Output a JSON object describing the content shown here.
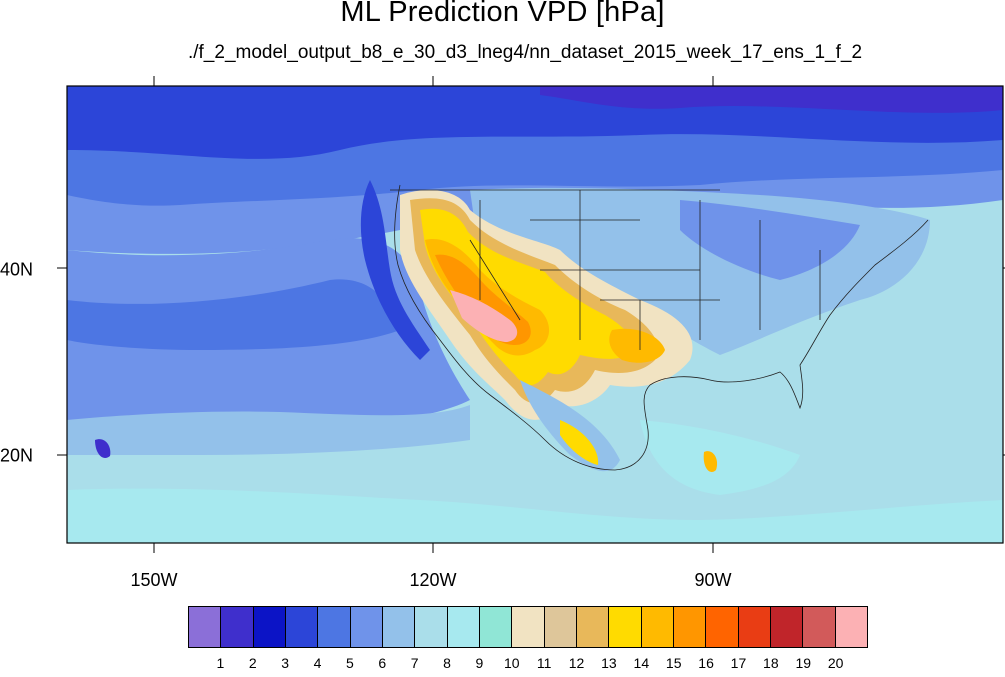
{
  "title": "ML Prediction VPD [hPa]",
  "subtitle": "./f_2_model_output_b8_e_30_d3_lneg4/nn_dataset_2015_week_17_ens_1_f_2",
  "axes": {
    "lon_labels": [
      "150W",
      "120W",
      "90W"
    ],
    "lat_labels": [
      "40N",
      "20N"
    ]
  },
  "colorbar": {
    "colors": [
      "#8b6fd8",
      "#3f2fcc",
      "#0c14c6",
      "#2c45d8",
      "#4d76e3",
      "#6f93ea",
      "#93c1ea",
      "#aadeea",
      "#a7e9ef",
      "#90e6d6",
      "#f1e3c2",
      "#dec69a",
      "#e8b85a",
      "#ffdb00",
      "#ffba00",
      "#ff9600",
      "#ff6400",
      "#e93d14",
      "#c0252a",
      "#d25a5a",
      "#fcb1b4"
    ],
    "labels": [
      "1",
      "2",
      "3",
      "4",
      "5",
      "6",
      "7",
      "8",
      "9",
      "10",
      "11",
      "12",
      "13",
      "14",
      "15",
      "16",
      "17",
      "18",
      "19",
      "20"
    ]
  }
}
